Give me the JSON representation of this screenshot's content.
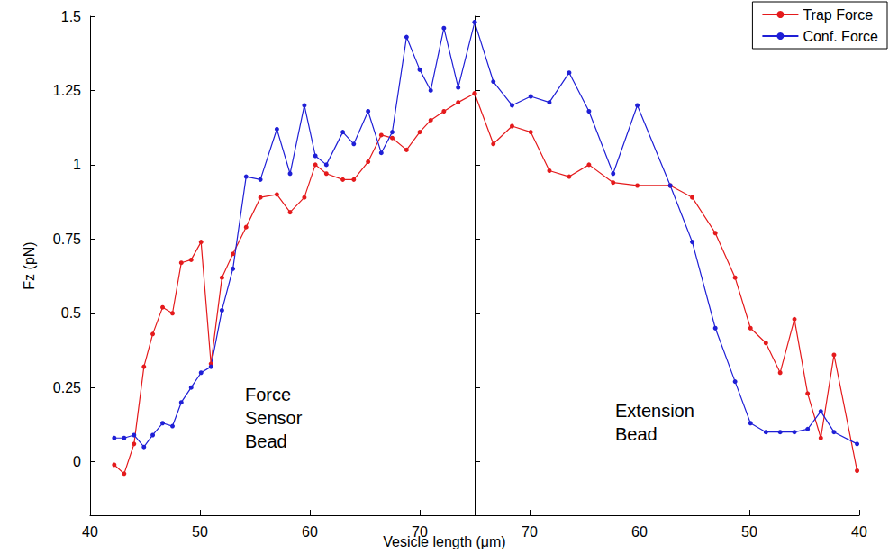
{
  "chart_data": [
    {
      "type": "line",
      "ylabel": "Fz (pN)",
      "xlabel": "Vesicle length (μm)",
      "annotations": [
        "Force Sensor Bead"
      ],
      "x": [
        42.2,
        43.1,
        44.0,
        44.9,
        45.7,
        46.6,
        47.5,
        48.3,
        49.2,
        50.1,
        51.0,
        52.0,
        53.0,
        54.2,
        55.5,
        57.0,
        58.2,
        59.5,
        60.5,
        61.5,
        63.0,
        64.0,
        65.3,
        66.5,
        67.5,
        68.8,
        70.0,
        71.0,
        72.2,
        73.5,
        75.0
      ],
      "series": [
        {
          "name": "Trap Force",
          "color": "#e41a1c",
          "marker": "circle",
          "values": [
            -0.01,
            -0.04,
            0.06,
            0.32,
            0.43,
            0.52,
            0.5,
            0.67,
            0.68,
            0.74,
            0.33,
            0.62,
            0.7,
            0.79,
            0.89,
            0.9,
            0.84,
            0.89,
            1.0,
            0.97,
            0.95,
            0.95,
            1.01,
            1.1,
            1.09,
            1.05,
            1.11,
            1.15,
            1.18,
            1.21,
            1.24
          ]
        },
        {
          "name": "Conf. Force",
          "color": "#1f1fd6",
          "marker": "circle",
          "values": [
            0.08,
            0.08,
            0.09,
            0.05,
            0.09,
            0.13,
            0.12,
            0.2,
            0.25,
            0.3,
            0.32,
            0.51,
            0.65,
            0.96,
            0.95,
            1.12,
            0.97,
            1.2,
            1.03,
            1.0,
            1.11,
            1.07,
            1.18,
            1.04,
            1.11,
            1.43,
            1.32,
            1.25,
            1.46,
            1.26,
            1.48
          ]
        }
      ],
      "xlim": [
        40,
        75
      ],
      "xticks": [
        40,
        50,
        60,
        70
      ],
      "ylim": [
        -0.18,
        1.5
      ],
      "yticks": [
        0,
        0.25,
        0.5,
        0.75,
        1,
        1.25,
        1.5
      ],
      "grid": false
    },
    {
      "type": "line",
      "annotations": [
        "Extension Bead"
      ],
      "x": [
        75.0,
        73.3,
        71.6,
        69.9,
        68.2,
        66.4,
        64.6,
        62.4,
        60.2,
        57.2,
        55.2,
        53.1,
        51.3,
        49.9,
        48.5,
        47.2,
        45.9,
        44.7,
        43.5,
        42.3,
        40.2
      ],
      "series": [
        {
          "name": "Trap Force",
          "color": "#e41a1c",
          "marker": "circle",
          "values": [
            1.24,
            1.07,
            1.13,
            1.11,
            0.98,
            0.96,
            1.0,
            0.94,
            0.93,
            0.93,
            0.89,
            0.77,
            0.62,
            0.45,
            0.4,
            0.3,
            0.48,
            0.23,
            0.08,
            0.36,
            -0.03
          ]
        },
        {
          "name": "Conf. Force",
          "color": "#1f1fd6",
          "marker": "circle",
          "values": [
            1.48,
            1.28,
            1.2,
            1.23,
            1.21,
            1.31,
            1.18,
            0.97,
            1.2,
            0.93,
            0.74,
            0.45,
            0.27,
            0.13,
            0.1,
            0.1,
            0.1,
            0.11,
            0.17,
            0.1,
            0.06
          ]
        }
      ],
      "xlim": [
        75,
        40
      ],
      "xticks": [
        70,
        60,
        50,
        40
      ],
      "ylim": [
        -0.18,
        1.5
      ],
      "yticks": [
        0,
        0.25,
        0.5,
        0.75,
        1,
        1.25,
        1.5
      ],
      "tick_labels": "x",
      "legend": "upper right",
      "grid": false
    }
  ]
}
